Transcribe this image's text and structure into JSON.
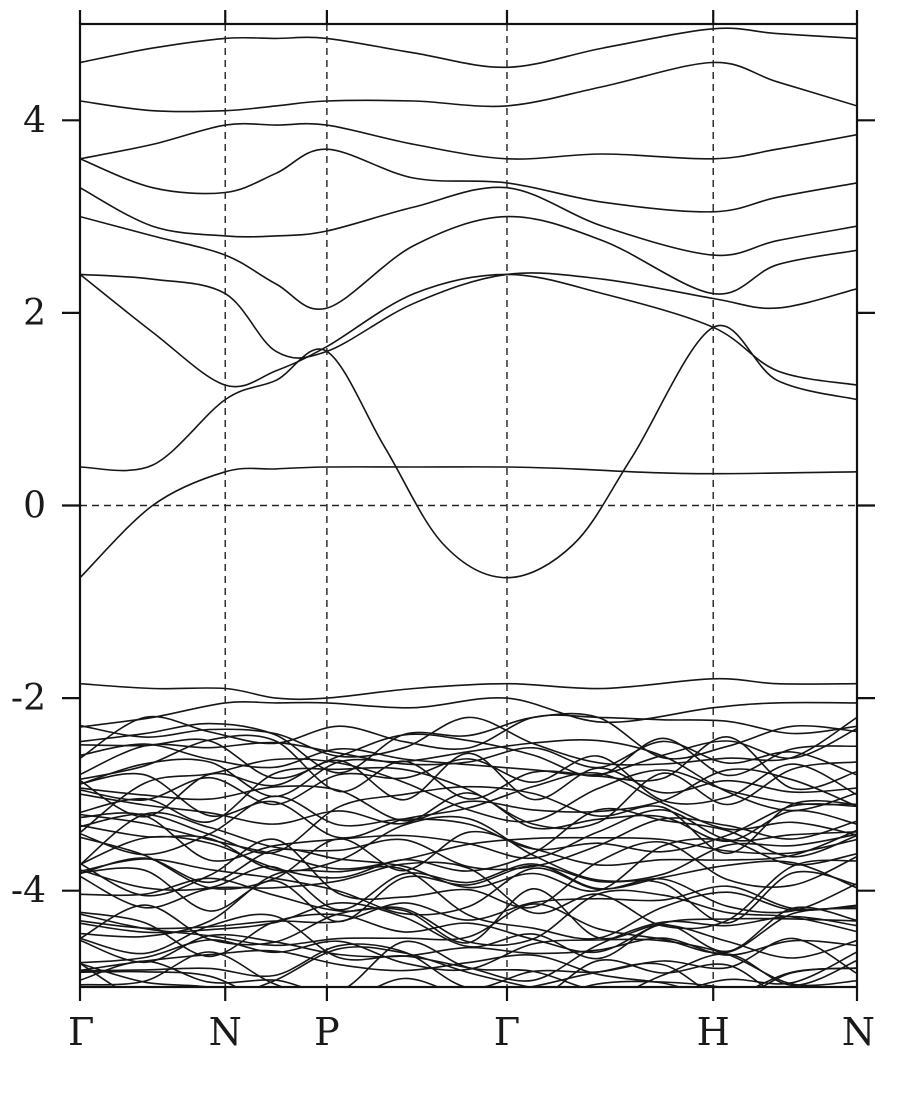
{
  "chart_data": {
    "type": "line",
    "title": "",
    "xlabel": "",
    "ylabel": "",
    "ylim": [
      -5,
      5
    ],
    "grid": false,
    "yticks": [
      4,
      2,
      0,
      -2,
      -4
    ],
    "ytick_labels": [
      "4",
      "2",
      "0",
      "-2",
      "-4"
    ],
    "k_labels": [
      "Γ",
      "N",
      "P",
      "Γ",
      "H",
      "N"
    ],
    "k_positions": [
      0,
      1,
      1.7,
      2.94,
      4.36,
      5.35
    ],
    "fermi_level": 0,
    "colors": {
      "bands": "#161616",
      "frame": "#111111",
      "background": "#ffffff"
    },
    "highlighted_bands": [
      {
        "name": "band-1",
        "x": [
          0,
          0.5,
          1,
          1.35,
          1.7,
          2.3,
          2.94,
          3.4,
          3.8,
          4.36,
          5.35
        ],
        "y": [
          -0.75,
          0.0,
          0.35,
          0.38,
          0.4,
          0.4,
          0.4,
          0.38,
          0.35,
          0.33,
          0.35
        ]
      },
      {
        "name": "band-2",
        "x": [
          0,
          0.5,
          1,
          1.35,
          1.7,
          2.1,
          2.5,
          2.94,
          3.4,
          3.8,
          4.36,
          4.8,
          5.35
        ],
        "y": [
          0.4,
          0.42,
          1.1,
          1.3,
          1.6,
          0.6,
          -0.4,
          -0.75,
          -0.4,
          0.5,
          1.85,
          1.3,
          1.1
        ]
      },
      {
        "name": "band-3",
        "x": [
          0,
          0.5,
          1,
          1.35,
          1.7,
          2.3,
          2.94,
          3.6,
          4.36,
          4.8,
          5.35
        ],
        "y": [
          2.4,
          1.8,
          1.25,
          1.4,
          1.65,
          2.2,
          2.4,
          2.2,
          1.85,
          1.4,
          1.25
        ]
      },
      {
        "name": "band-4",
        "x": [
          0,
          0.5,
          1,
          1.35,
          1.7,
          2.3,
          2.94,
          3.6,
          4.36,
          4.8,
          5.35
        ],
        "y": [
          2.4,
          2.35,
          2.2,
          1.6,
          1.6,
          2.1,
          2.4,
          2.35,
          2.15,
          2.05,
          2.25
        ]
      },
      {
        "name": "band-5",
        "x": [
          0,
          0.5,
          1,
          1.35,
          1.7,
          2.3,
          2.94,
          3.6,
          4.36,
          4.8,
          5.35
        ],
        "y": [
          3.0,
          2.8,
          2.6,
          2.3,
          2.05,
          2.7,
          3.0,
          2.75,
          2.2,
          2.5,
          2.65
        ]
      },
      {
        "name": "band-6",
        "x": [
          0,
          0.5,
          1,
          1.35,
          1.7,
          2.3,
          2.94,
          3.6,
          4.36,
          4.8,
          5.35
        ],
        "y": [
          3.3,
          2.9,
          2.8,
          2.8,
          2.85,
          3.1,
          3.3,
          2.9,
          2.6,
          2.75,
          2.9
        ]
      },
      {
        "name": "band-7",
        "x": [
          0,
          0.5,
          1,
          1.35,
          1.7,
          2.3,
          2.94,
          3.6,
          4.36,
          4.8,
          5.35
        ],
        "y": [
          3.6,
          3.3,
          3.25,
          3.45,
          3.7,
          3.4,
          3.35,
          3.15,
          3.05,
          3.2,
          3.35
        ]
      },
      {
        "name": "band-8",
        "x": [
          0,
          0.5,
          1,
          1.35,
          1.7,
          2.3,
          2.94,
          3.6,
          4.36,
          4.8,
          5.35
        ],
        "y": [
          3.6,
          3.75,
          3.95,
          3.95,
          3.95,
          3.75,
          3.6,
          3.65,
          3.6,
          3.7,
          3.85
        ]
      },
      {
        "name": "band-9",
        "x": [
          0,
          0.5,
          1,
          1.35,
          1.7,
          2.3,
          2.94,
          3.6,
          4.36,
          4.8,
          5.35
        ],
        "y": [
          4.2,
          4.1,
          4.1,
          4.15,
          4.2,
          4.2,
          4.15,
          4.35,
          4.6,
          4.4,
          4.15
        ]
      },
      {
        "name": "band-10",
        "x": [
          0,
          0.5,
          1,
          1.35,
          1.7,
          2.3,
          2.94,
          3.6,
          4.36,
          4.8,
          5.35
        ],
        "y": [
          4.6,
          4.75,
          4.85,
          4.85,
          4.85,
          4.7,
          4.55,
          4.75,
          4.95,
          4.9,
          4.85
        ]
      },
      {
        "name": "band-11",
        "x": [
          0,
          0.5,
          1,
          1.35,
          1.7,
          2.3,
          2.94,
          3.6,
          4.36,
          4.8,
          5.35
        ],
        "y": [
          -1.85,
          -1.9,
          -1.9,
          -2.0,
          -2.0,
          -1.9,
          -1.85,
          -1.9,
          -1.8,
          -1.85,
          -1.85
        ]
      },
      {
        "name": "band-12",
        "x": [
          0,
          0.5,
          1,
          1.35,
          1.7,
          2.3,
          2.94,
          3.6,
          4.36,
          4.8,
          5.35
        ],
        "y": [
          -2.3,
          -2.2,
          -2.05,
          -2.05,
          -2.05,
          -2.1,
          -2.0,
          -2.25,
          -2.1,
          -2.05,
          -2.05
        ]
      }
    ]
  }
}
